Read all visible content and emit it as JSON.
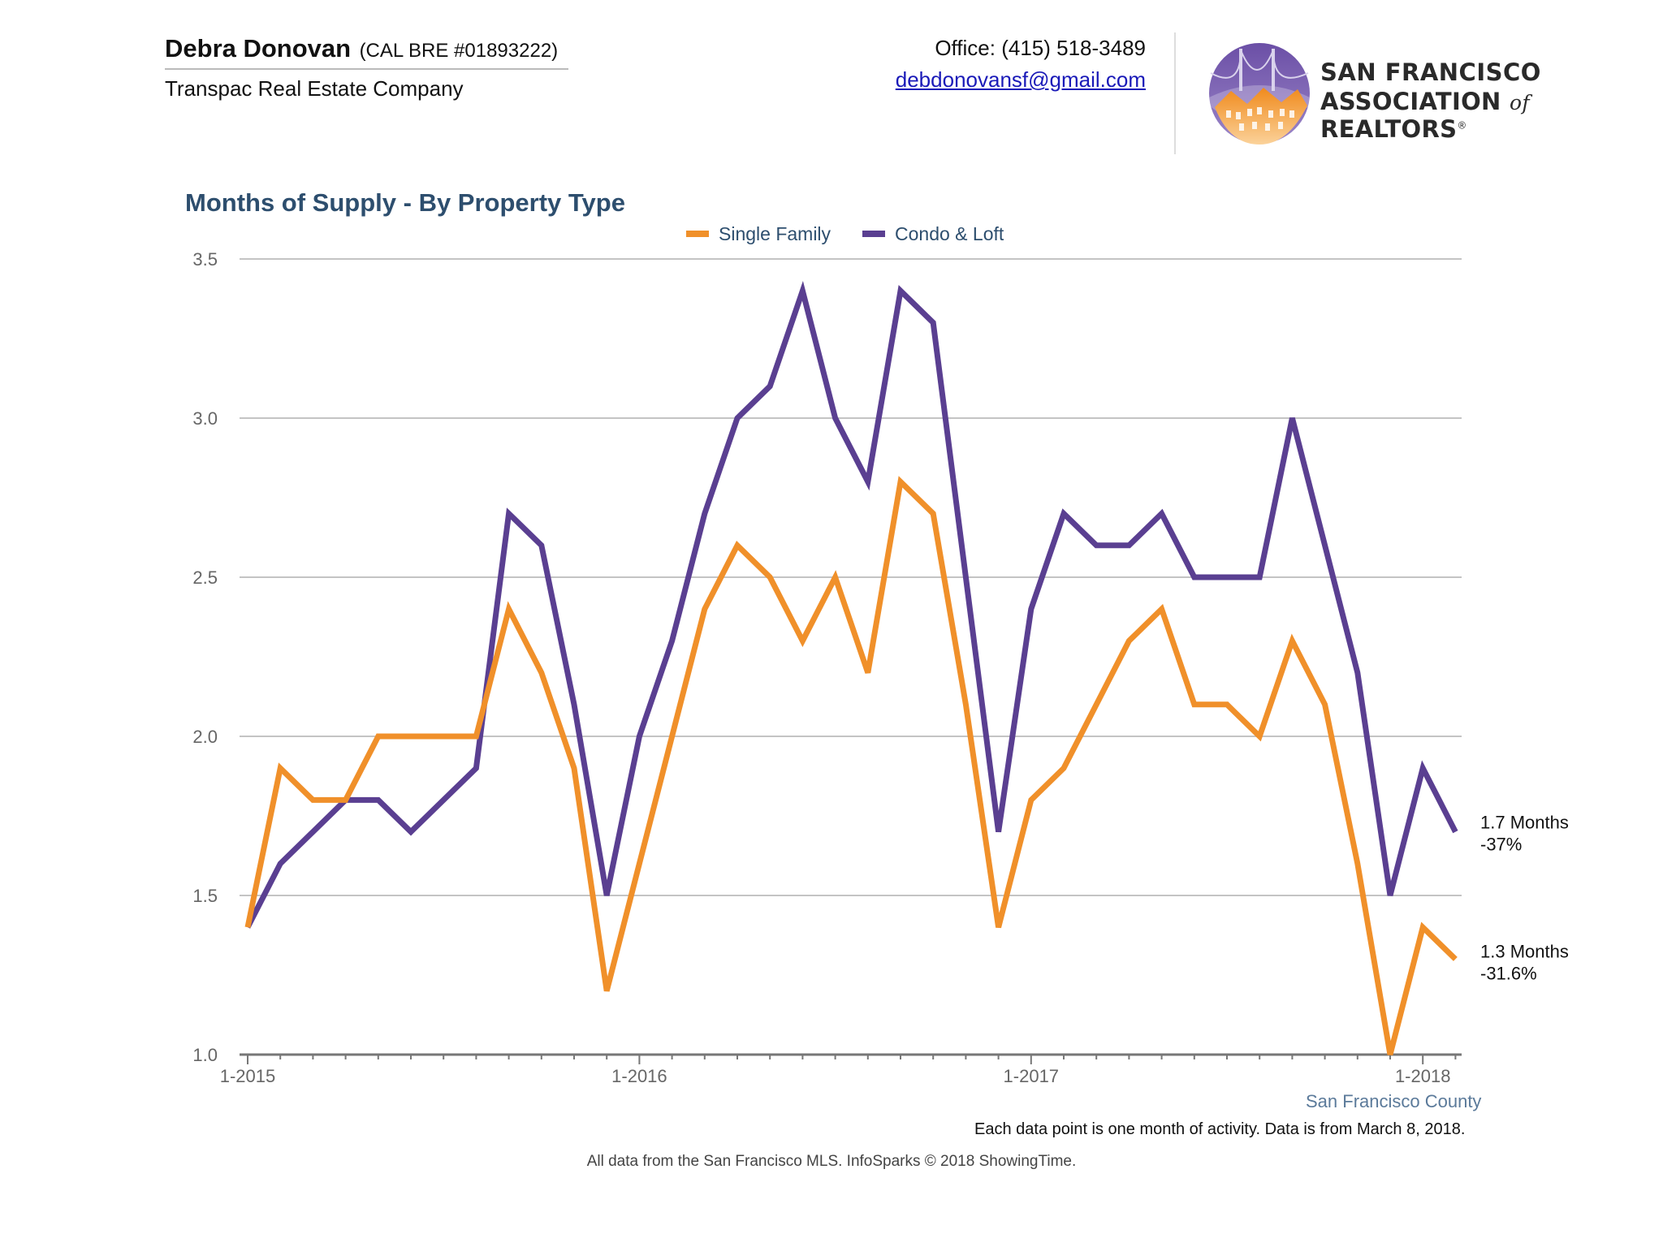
{
  "header": {
    "agent_name": "Debra Donovan",
    "agent_license": "(CAL BRE #01893222)",
    "company": "Transpac Real Estate Company",
    "phone": "Office: (415) 518-3489",
    "email": "debdonovansf@gmail.com"
  },
  "logo": {
    "line1": "SAN FRANCISCO",
    "line2_a": "ASSOCIATION",
    "line2_of": "of",
    "line2_b": "REALTORS",
    "registered": "®"
  },
  "colors": {
    "single_family": "#F0902A",
    "condo_loft": "#5A3F91",
    "title": "#2d4e6e",
    "legend_text": "#2d4e6e",
    "grid": "#c4c4c4",
    "axis": "#777777",
    "region": "#5b7a9a"
  },
  "chart_data": {
    "type": "line",
    "title": "Months of Supply - By Property Type",
    "xlabel": "",
    "ylabel": "",
    "ylim": [
      1.0,
      3.5
    ],
    "yticks": [
      "1.0",
      "1.5",
      "2.0",
      "2.5",
      "3.0",
      "3.5"
    ],
    "xticks": [
      "1-2015",
      "1-2016",
      "1-2017",
      "1-2018"
    ],
    "grid": true,
    "legend_position": "top-center",
    "x": [
      "1-2015",
      "2-2015",
      "3-2015",
      "4-2015",
      "5-2015",
      "6-2015",
      "7-2015",
      "8-2015",
      "9-2015",
      "10-2015",
      "11-2015",
      "12-2015",
      "1-2016",
      "2-2016",
      "3-2016",
      "4-2016",
      "5-2016",
      "6-2016",
      "7-2016",
      "8-2016",
      "9-2016",
      "10-2016",
      "11-2016",
      "12-2016",
      "1-2017",
      "2-2017",
      "3-2017",
      "4-2017",
      "5-2017",
      "6-2017",
      "7-2017",
      "8-2017",
      "9-2017",
      "10-2017",
      "11-2017",
      "12-2017",
      "1-2018",
      "2-2018"
    ],
    "series": [
      {
        "name": "Single Family",
        "values": [
          1.4,
          1.9,
          1.8,
          1.8,
          2.0,
          2.0,
          2.0,
          2.0,
          2.4,
          2.2,
          1.9,
          1.2,
          1.6,
          2.0,
          2.4,
          2.6,
          2.5,
          2.3,
          2.5,
          2.2,
          2.8,
          2.7,
          2.1,
          1.4,
          1.8,
          1.9,
          2.1,
          2.3,
          2.4,
          2.1,
          2.1,
          2.0,
          2.3,
          2.1,
          1.6,
          1.0,
          1.4,
          1.3
        ],
        "end_label": "1.3 Months",
        "end_change": "-31.6%"
      },
      {
        "name": "Condo & Loft",
        "values": [
          1.4,
          1.6,
          1.7,
          1.8,
          1.8,
          1.7,
          1.8,
          1.9,
          2.7,
          2.6,
          2.1,
          1.5,
          2.0,
          2.3,
          2.7,
          3.0,
          3.1,
          3.4,
          3.0,
          2.8,
          3.4,
          3.3,
          2.5,
          1.7,
          2.4,
          2.7,
          2.6,
          2.6,
          2.7,
          2.5,
          2.5,
          2.5,
          3.0,
          2.6,
          2.2,
          1.5,
          1.9,
          1.7
        ],
        "end_label": "1.7 Months",
        "end_change": "-37%"
      }
    ],
    "region_label": "San Francisco County",
    "footnote": "Each data point is one month of activity. Data is from March 8, 2018."
  },
  "source": "All data from the San Francisco MLS. InfoSparks © 2018 ShowingTime."
}
